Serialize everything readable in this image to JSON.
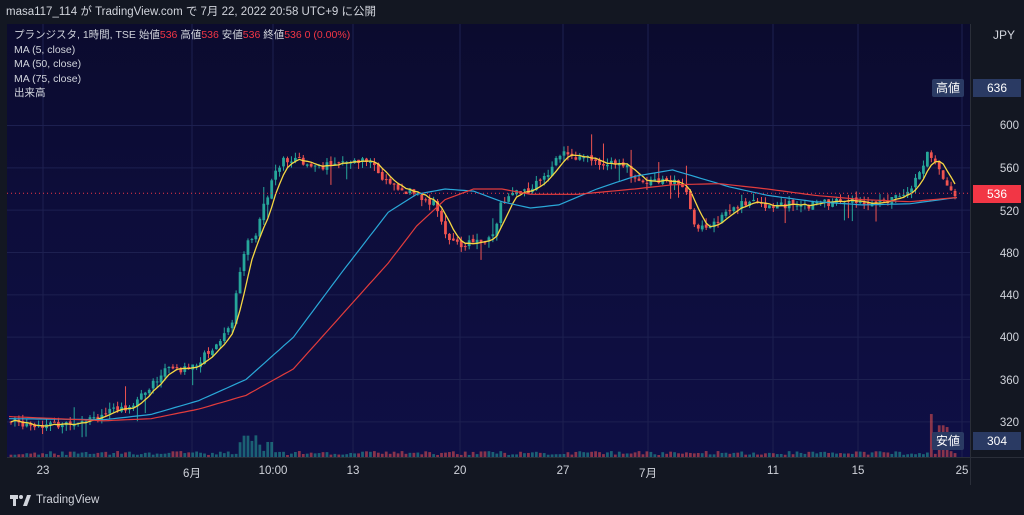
{
  "header": {
    "publish_line": "masa117_114 が TradingView.com で 7月 22, 2022 20:58 UTC+9 に公開"
  },
  "legend": {
    "symbol": "プランジスタ, 1時間, TSE",
    "open_label": "始値",
    "open_value": "536",
    "high_label": "高値",
    "high_value": "536",
    "low_label": "安値",
    "low_value": "536",
    "close_label": "終値",
    "close_value": "536",
    "change": "0 (0.00%)",
    "ma5": "MA (5, close)",
    "ma50": "MA (50, close)",
    "ma75": "MA (75, close)",
    "volume": "出来高"
  },
  "price_axis": {
    "currency": "JPY",
    "ticks": [
      "600",
      "560",
      "520",
      "480",
      "440",
      "400",
      "360",
      "320"
    ],
    "current_price": "536",
    "high_price": "636",
    "low_price": "304",
    "high_note": "高値",
    "low_note": "安値"
  },
  "time_axis": {
    "labels": [
      "23",
      "6月",
      "10:00",
      "13",
      "20",
      "27",
      "7月",
      "11",
      "15",
      "25"
    ]
  },
  "footer": {
    "brand": "TradingView"
  },
  "colors": {
    "up": "#26a69a",
    "down": "#ef5350",
    "ma5": "#f5d742",
    "ma50": "#2aa8d8",
    "ma75": "#e23c3c",
    "current_tag": "#f23645",
    "note_tag": "#2a3a63"
  },
  "chart_data": {
    "type": "candlestick",
    "price_ylim": [
      304,
      636
    ],
    "price_anchors_by_progress": [
      [
        0.0,
        320
      ],
      [
        0.03,
        318
      ],
      [
        0.05,
        317
      ],
      [
        0.08,
        324
      ],
      [
        0.11,
        330
      ],
      [
        0.13,
        338
      ],
      [
        0.15,
        355
      ],
      [
        0.165,
        372
      ],
      [
        0.18,
        368
      ],
      [
        0.2,
        378
      ],
      [
        0.22,
        395
      ],
      [
        0.235,
        418
      ],
      [
        0.245,
        480
      ],
      [
        0.26,
        500
      ],
      [
        0.275,
        545
      ],
      [
        0.285,
        565
      ],
      [
        0.3,
        568
      ],
      [
        0.33,
        562
      ],
      [
        0.36,
        564
      ],
      [
        0.38,
        570
      ],
      [
        0.39,
        552
      ],
      [
        0.41,
        540
      ],
      [
        0.43,
        535
      ],
      [
        0.45,
        525
      ],
      [
        0.46,
        500
      ],
      [
        0.475,
        485
      ],
      [
        0.49,
        490
      ],
      [
        0.51,
        495
      ],
      [
        0.52,
        528
      ],
      [
        0.535,
        538
      ],
      [
        0.55,
        540
      ],
      [
        0.57,
        558
      ],
      [
        0.58,
        573
      ],
      [
        0.6,
        570
      ],
      [
        0.62,
        566
      ],
      [
        0.645,
        566
      ],
      [
        0.66,
        553
      ],
      [
        0.675,
        547
      ],
      [
        0.69,
        549
      ],
      [
        0.705,
        547
      ],
      [
        0.715,
        535
      ],
      [
        0.725,
        505
      ],
      [
        0.74,
        504
      ],
      [
        0.76,
        520
      ],
      [
        0.78,
        527
      ],
      [
        0.8,
        525
      ],
      [
        0.83,
        525
      ],
      [
        0.86,
        526
      ],
      [
        0.88,
        528
      ],
      [
        0.9,
        527
      ],
      [
        0.92,
        528
      ],
      [
        0.935,
        530
      ],
      [
        0.945,
        533
      ],
      [
        0.955,
        540
      ],
      [
        0.965,
        562
      ],
      [
        0.972,
        576
      ],
      [
        0.98,
        560
      ],
      [
        1.0,
        536
      ]
    ],
    "ma50_anchors_by_progress": [
      [
        0.0,
        323
      ],
      [
        0.1,
        322
      ],
      [
        0.15,
        327
      ],
      [
        0.2,
        340
      ],
      [
        0.25,
        360
      ],
      [
        0.3,
        400
      ],
      [
        0.35,
        460
      ],
      [
        0.4,
        518
      ],
      [
        0.43,
        535
      ],
      [
        0.46,
        540
      ],
      [
        0.49,
        538
      ],
      [
        0.52,
        528
      ],
      [
        0.55,
        522
      ],
      [
        0.58,
        525
      ],
      [
        0.62,
        540
      ],
      [
        0.66,
        552
      ],
      [
        0.7,
        558
      ],
      [
        0.73,
        550
      ],
      [
        0.76,
        542
      ],
      [
        0.8,
        534
      ],
      [
        0.85,
        528
      ],
      [
        0.9,
        525
      ],
      [
        0.95,
        526
      ],
      [
        1.0,
        532
      ]
    ],
    "ma75_anchors_by_progress": [
      [
        0.0,
        325
      ],
      [
        0.1,
        321
      ],
      [
        0.15,
        323
      ],
      [
        0.2,
        332
      ],
      [
        0.25,
        345
      ],
      [
        0.3,
        370
      ],
      [
        0.35,
        420
      ],
      [
        0.4,
        470
      ],
      [
        0.43,
        505
      ],
      [
        0.46,
        530
      ],
      [
        0.49,
        540
      ],
      [
        0.52,
        540
      ],
      [
        0.55,
        535
      ],
      [
        0.6,
        535
      ],
      [
        0.66,
        540
      ],
      [
        0.7,
        544
      ],
      [
        0.75,
        545
      ],
      [
        0.8,
        540
      ],
      [
        0.85,
        534
      ],
      [
        0.9,
        530
      ],
      [
        0.95,
        528
      ],
      [
        1.0,
        532
      ]
    ],
    "volume_spikes_by_progress": [
      [
        0.25,
        0.2
      ],
      [
        0.245,
        0.1
      ],
      [
        0.272,
        0.08
      ],
      [
        0.975,
        0.45
      ],
      [
        0.985,
        0.32
      ],
      [
        0.99,
        0.3
      ]
    ]
  }
}
